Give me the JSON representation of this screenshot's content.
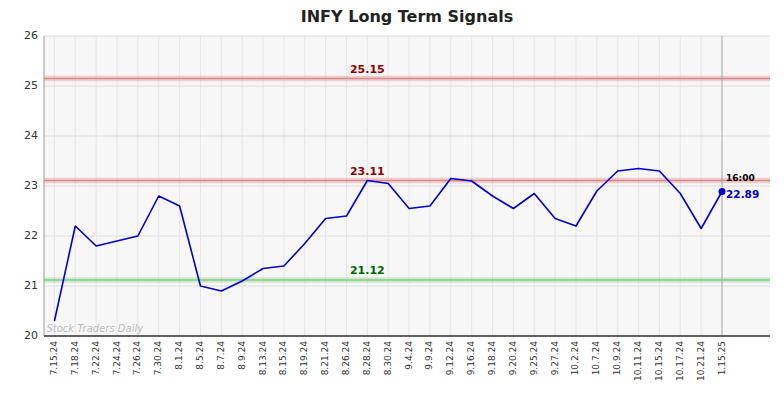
{
  "chart_data": {
    "type": "line",
    "title": "INFY Long Term Signals",
    "categories": [
      "7.15.24",
      "7.18.24",
      "7.22.24",
      "7.24.24",
      "7.26.24",
      "7.30.24",
      "8.1.24",
      "8.5.24",
      "8.7.24",
      "8.9.24",
      "8.13.24",
      "8.15.24",
      "8.19.24",
      "8.21.24",
      "8.26.24",
      "8.28.24",
      "8.30.24",
      "9.4.24",
      "9.9.24",
      "9.12.24",
      "9.16.24",
      "9.18.24",
      "9.20.24",
      "9.25.24",
      "9.27.24",
      "10.2.24",
      "10.7.24",
      "10.9.24",
      "10.11.24",
      "10.15.24",
      "10.17.24",
      "10.21.24",
      "1.15.25"
    ],
    "values": [
      20.3,
      22.2,
      21.8,
      21.9,
      22.0,
      22.8,
      22.6,
      21.0,
      20.9,
      21.1,
      21.35,
      21.4,
      21.85,
      22.35,
      22.4,
      23.11,
      23.05,
      22.55,
      22.6,
      23.15,
      23.1,
      22.8,
      22.55,
      22.85,
      22.35,
      22.2,
      22.9,
      23.3,
      23.35,
      23.3,
      22.85,
      22.15,
      22.89
    ],
    "color": "#0000cc",
    "ylim": [
      20,
      26
    ],
    "yticks": [
      20,
      21,
      22,
      23,
      24,
      25,
      26
    ],
    "grid": true,
    "hlines": [
      {
        "value": 25.15,
        "label": "25.15",
        "color": "#dd8888",
        "label_color": "#8b0000"
      },
      {
        "value": 23.11,
        "label": "23.11",
        "color": "#dd8888",
        "label_color": "#8b0000"
      },
      {
        "value": 21.12,
        "label": "21.12",
        "color": "#88cc88",
        "label_color": "#006600"
      }
    ],
    "last_point": {
      "value": 22.89,
      "label": "22.89",
      "time": "16:00"
    },
    "watermark": "Stock Traders Daily"
  }
}
